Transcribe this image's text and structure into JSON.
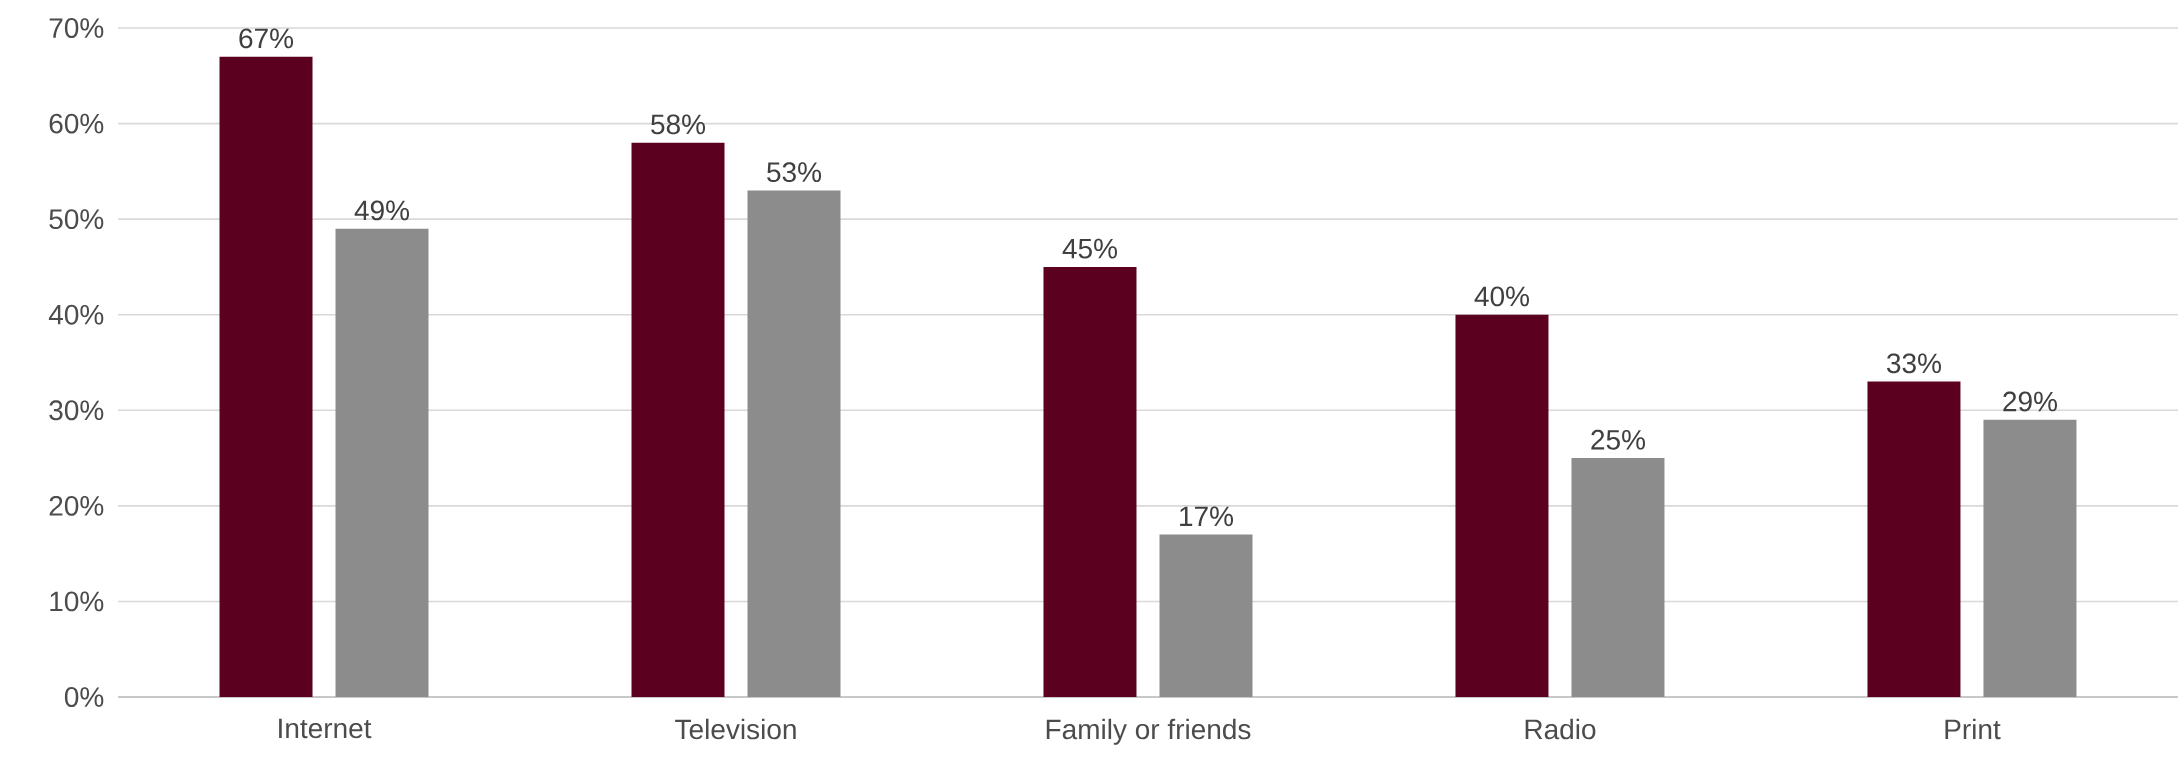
{
  "chart_data": {
    "type": "bar",
    "categories": [
      "Internet",
      "Television",
      "Family or friends",
      "Radio",
      "Print"
    ],
    "series": [
      {
        "color": "#5c0020",
        "values": [
          67,
          58,
          45,
          40,
          33
        ],
        "value_labels": [
          "67%",
          "58%",
          "45%",
          "40%",
          "33%"
        ]
      },
      {
        "color": "#8c8c8c",
        "values": [
          49,
          53,
          17,
          25,
          29
        ],
        "value_labels": [
          "49%",
          "53%",
          "17%",
          "25%",
          "29%"
        ]
      }
    ],
    "ylim": [
      0,
      70
    ],
    "yticks": [
      {
        "value": 0,
        "label": "0%"
      },
      {
        "value": 10,
        "label": "10%"
      },
      {
        "value": 20,
        "label": "20%"
      },
      {
        "value": 30,
        "label": "30%"
      },
      {
        "value": 40,
        "label": "40%"
      },
      {
        "value": 50,
        "label": "50%"
      },
      {
        "value": 60,
        "label": "60%"
      },
      {
        "value": 70,
        "label": "70%"
      }
    ],
    "grid": "y"
  }
}
